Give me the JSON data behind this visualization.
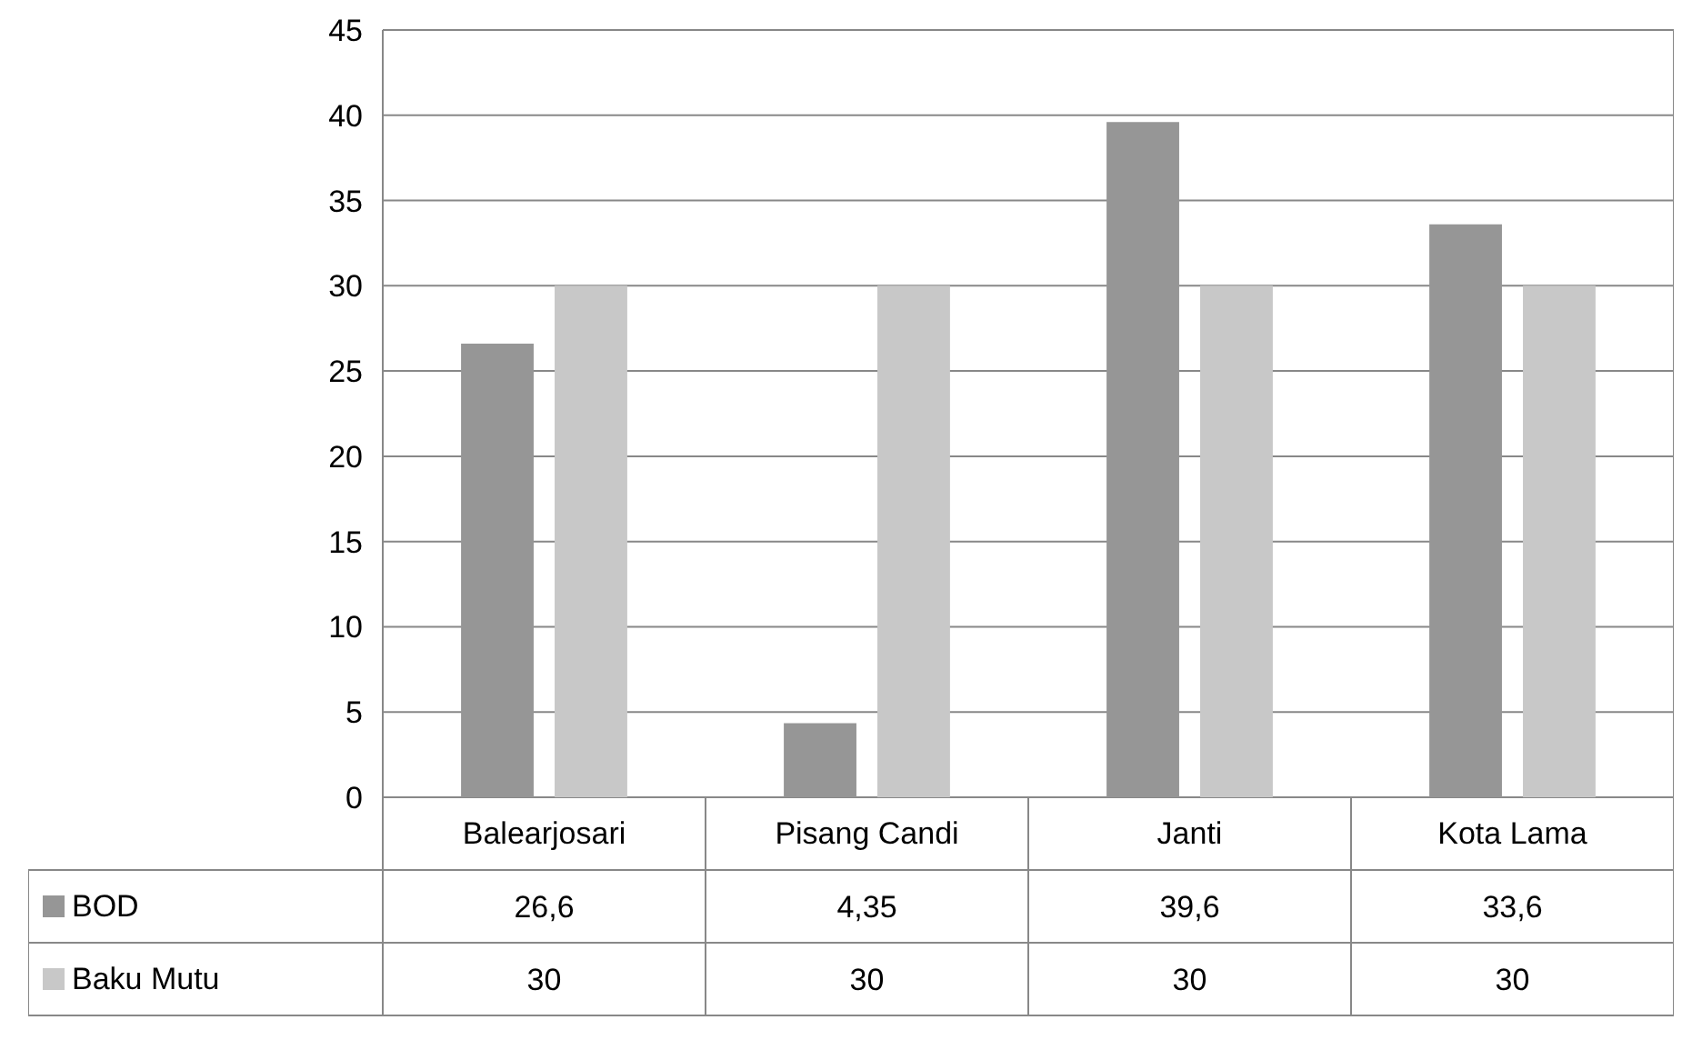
{
  "chart_data": {
    "type": "bar",
    "categories": [
      "Balearjosari",
      "Pisang Candi",
      "Janti",
      "Kota Lama"
    ],
    "series": [
      {
        "name": "BOD",
        "color": "#969696",
        "values": [
          26.6,
          4.35,
          39.6,
          33.6
        ],
        "value_labels": [
          "26,6",
          "4,35",
          "39,6",
          "33,6"
        ]
      },
      {
        "name": "Baku Mutu",
        "color": "#c8c8c8",
        "values": [
          30,
          30,
          30,
          30
        ],
        "value_labels": [
          "30",
          "30",
          "30",
          "30"
        ]
      }
    ],
    "ylim": [
      0,
      45
    ],
    "yticks": [
      0,
      5,
      10,
      15,
      20,
      25,
      30,
      35,
      40,
      45
    ],
    "grid": "y",
    "legend": "bottom",
    "tick_labels": "y"
  }
}
